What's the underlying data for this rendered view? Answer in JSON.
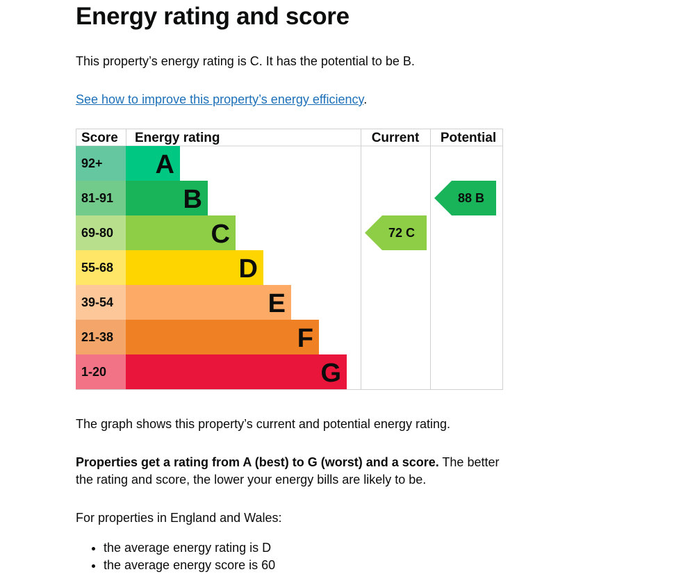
{
  "title": "Energy rating and score",
  "intro": "This property’s energy rating is C. It has the potential to be B.",
  "link": "See how to improve this property’s energy efficiency",
  "link_suffix": ".",
  "chart": {
    "headers": {
      "score": "Score",
      "rating": "Energy rating",
      "current": "Current",
      "potential": "Potential"
    },
    "bands": [
      {
        "score": "92+",
        "letter": "A",
        "color": "#00c781",
        "light": "#64c7a0"
      },
      {
        "score": "81-91",
        "letter": "B",
        "color": "#19b459",
        "light": "#72ca8b"
      },
      {
        "score": "69-80",
        "letter": "C",
        "color": "#8dce46",
        "light": "#b8df8c"
      },
      {
        "score": "55-68",
        "letter": "D",
        "color": "#ffd500",
        "light": "#ffe666"
      },
      {
        "score": "39-54",
        "letter": "E",
        "color": "#fcaa65",
        "light": "#fdc79a"
      },
      {
        "score": "21-38",
        "letter": "F",
        "color": "#ef8023",
        "light": "#f4a66a"
      },
      {
        "score": "1-20",
        "letter": "G",
        "color": "#e9153b",
        "light": "#f27386"
      }
    ],
    "current": {
      "score": 72,
      "letter": "C",
      "band_index": 2,
      "label": "72  C"
    },
    "potential": {
      "score": 88,
      "letter": "B",
      "band_index": 1,
      "label": "88  B"
    }
  },
  "graph_text": "The graph shows this property’s current and potential energy rating.",
  "rating_bold": "Properties get a rating from A (best) to G (worst) and a score.",
  "rating_rest": " The better the rating and score, the lower your energy bills are likely to be.",
  "england": "For properties in England and Wales:",
  "bullets": [
    "the average energy rating is D",
    "the average energy score is 60"
  ]
}
